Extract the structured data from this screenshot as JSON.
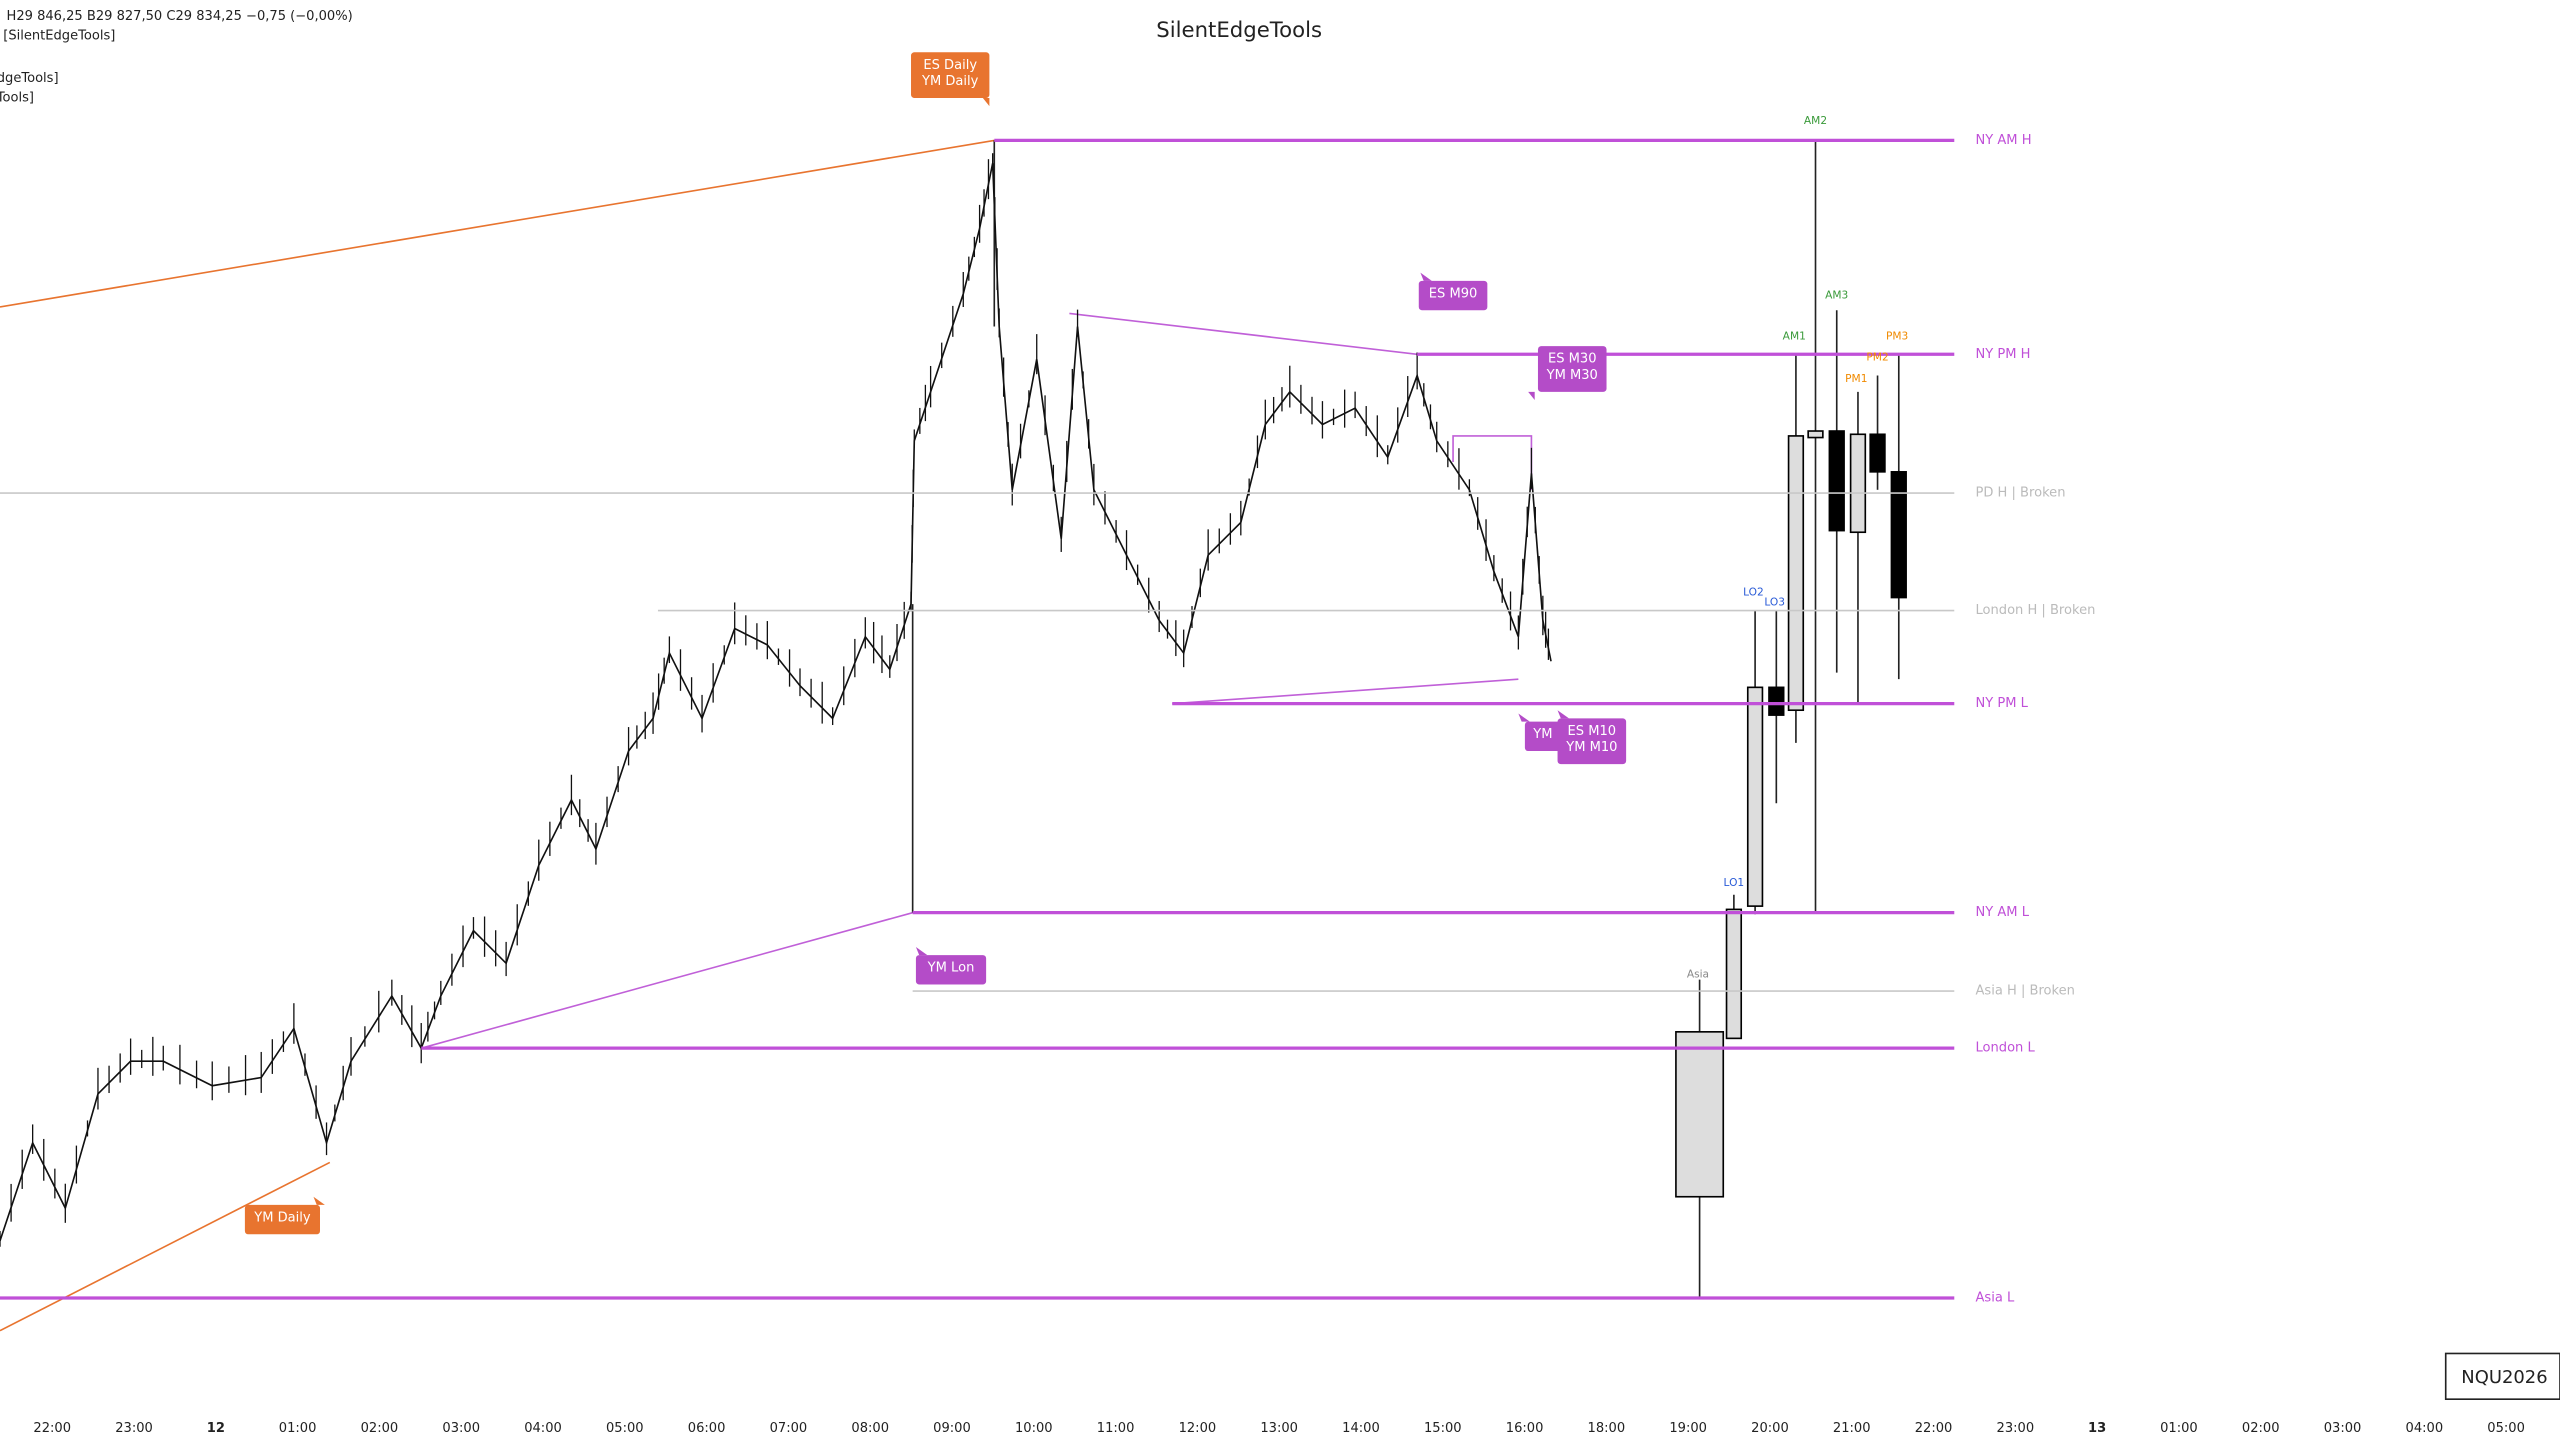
{
  "header": {
    "title": "SilentEdgeTools",
    "ohlc": "H29 846,25  B29 827,50  C29 834,25  −0,75 (−0,00%)",
    "indicators": [
      "[SilentEdgeTools]",
      "dgeTools]",
      "Tools]"
    ]
  },
  "levels": [
    "NY AM H",
    "NY PM H",
    "PD H | Broken",
    "London H | Broken",
    "NY PM L",
    "NY AM L",
    "Asia H | Broken",
    "London L",
    "Asia L"
  ],
  "tags": [
    {
      "lines": [
        "ES Daily",
        "YM Daily"
      ]
    },
    {
      "lines": [
        "YM Daily"
      ]
    },
    {
      "lines": [
        "ES M90"
      ]
    },
    {
      "lines": [
        "ES M30",
        "YM M30"
      ]
    },
    {
      "lines": [
        "YM"
      ]
    },
    {
      "lines": [
        "ES M10",
        "YM M10"
      ]
    },
    {
      "lines": [
        "YM Lon"
      ]
    }
  ],
  "sessions": [
    "AM2",
    "AM3",
    "AM1",
    "PM3",
    "PM2",
    "PM1",
    "LO2",
    "LO3",
    "LO1",
    "Asia"
  ],
  "time_axis": [
    "22:00",
    "23:00",
    "12",
    "01:00",
    "02:00",
    "03:00",
    "04:00",
    "05:00",
    "06:00",
    "07:00",
    "08:00",
    "09:00",
    "10:00",
    "11:00",
    "12:00",
    "13:00",
    "14:00",
    "15:00",
    "16:00",
    "18:00",
    "19:00",
    "20:00",
    "21:00",
    "22:00",
    "23:00",
    "13",
    "01:00",
    "02:00",
    "03:00",
    "04:00",
    "05:00"
  ],
  "symbol": "NQU2026"
}
